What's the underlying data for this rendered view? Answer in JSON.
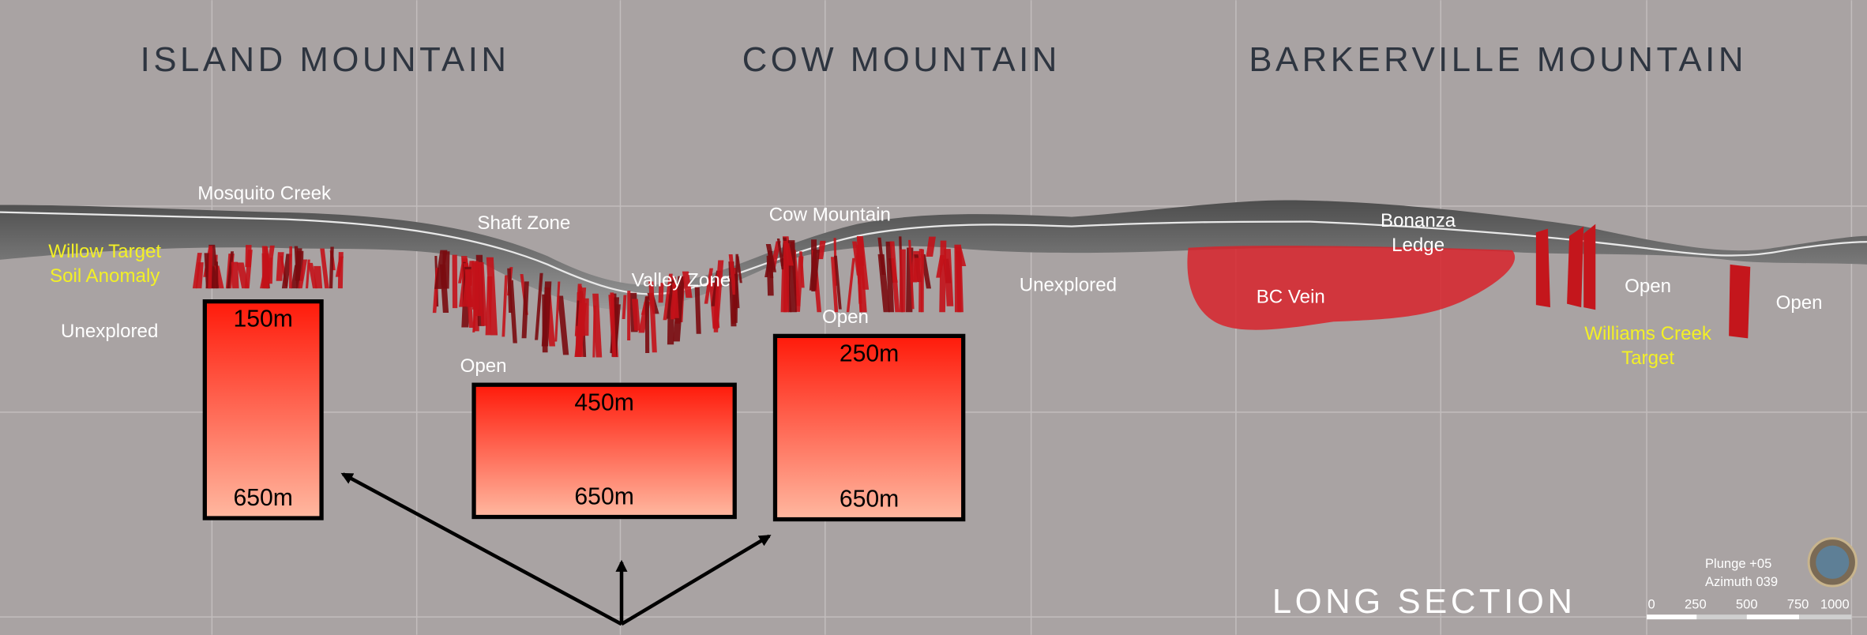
{
  "headers": [
    "ISLAND MOUNTAIN",
    "COW MOUNTAIN",
    "BARKERVILLE MOUNTAIN"
  ],
  "labels": [
    [
      "Mosquito Creek"
    ],
    [
      "Willow Target",
      "Soil Anomaly"
    ],
    [
      "Unexplored"
    ],
    [
      "Shaft Zone"
    ],
    [
      "Valley Zone"
    ],
    [
      "Cow Mountain"
    ],
    [
      "Open"
    ],
    [
      "Open"
    ],
    [
      "Unexplored"
    ],
    [
      "Bonanza",
      "Ledge"
    ],
    [
      "BC Vein"
    ],
    [
      "Open"
    ],
    [
      "Open"
    ],
    [
      "Williams Creek",
      "Target"
    ]
  ],
  "depth_boxes": [
    {
      "top": "150m",
      "bottom": "650m"
    },
    {
      "top": "450m",
      "bottom": "650m"
    },
    {
      "top": "250m",
      "bottom": "650m"
    }
  ],
  "section_title": "LONG SECTION",
  "orientation": [
    "Plunge +05",
    "Azimuth 039"
  ],
  "scale_bar": [
    "0",
    "250",
    "500",
    "750",
    "1000"
  ]
}
